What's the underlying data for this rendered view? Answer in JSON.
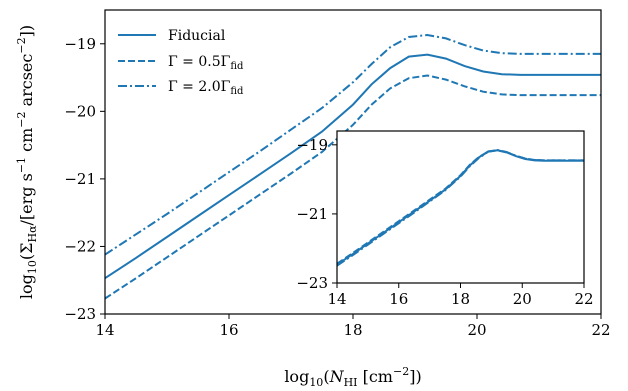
{
  "chart_data": [
    {
      "type": "line",
      "xlabel": "log10(N_HI [cm^-2])",
      "ylabel": "log10(Σ_Hα/[erg s^-1 cm^-2 arcsec^-2])",
      "xlim": [
        14,
        22
      ],
      "ylim": [
        -23,
        -18.5
      ],
      "xticks": [
        "14",
        "16",
        "18",
        "20",
        "22"
      ],
      "yticks": [
        "−23",
        "−22",
        "−21",
        "−20",
        "−19"
      ],
      "xtick_values": [
        14,
        16,
        18,
        20,
        22
      ],
      "ytick_values": [
        -23,
        -22,
        -21,
        -20,
        -19
      ],
      "legend": "top-left",
      "line_color": "#1f77b4",
      "series": [
        {
          "name": "Fiducial",
          "style": "solid",
          "x": [
            14,
            14.5,
            15,
            15.5,
            16,
            16.5,
            17,
            17.5,
            18,
            18.3,
            18.6,
            18.9,
            19.2,
            19.5,
            19.8,
            20.1,
            20.4,
            20.7,
            21,
            21.5,
            22
          ],
          "y": [
            -22.47,
            -22.17,
            -21.86,
            -21.55,
            -21.24,
            -20.93,
            -20.62,
            -20.3,
            -19.9,
            -19.6,
            -19.36,
            -19.19,
            -19.16,
            -19.22,
            -19.33,
            -19.41,
            -19.45,
            -19.46,
            -19.46,
            -19.46,
            -19.46
          ]
        },
        {
          "name": "Γ = 0.5Γfid",
          "style": "dashed",
          "x": [
            14,
            14.5,
            15,
            15.5,
            16,
            16.5,
            17,
            17.5,
            18,
            18.3,
            18.6,
            18.9,
            19.2,
            19.5,
            19.8,
            20.1,
            20.4,
            20.7,
            21,
            21.5,
            22
          ],
          "y": [
            -22.77,
            -22.47,
            -22.16,
            -21.85,
            -21.54,
            -21.23,
            -20.92,
            -20.6,
            -20.2,
            -19.9,
            -19.66,
            -19.51,
            -19.47,
            -19.53,
            -19.63,
            -19.71,
            -19.75,
            -19.76,
            -19.76,
            -19.76,
            -19.76
          ]
        },
        {
          "name": "Γ = 2.0Γfid",
          "style": "dashdot",
          "x": [
            14,
            14.5,
            15,
            15.5,
            16,
            16.5,
            17,
            17.5,
            18,
            18.3,
            18.6,
            18.9,
            19.2,
            19.5,
            19.8,
            20.1,
            20.4,
            20.7,
            21,
            21.5,
            22
          ],
          "y": [
            -22.12,
            -21.82,
            -21.52,
            -21.21,
            -20.9,
            -20.59,
            -20.27,
            -19.95,
            -19.57,
            -19.3,
            -19.05,
            -18.9,
            -18.87,
            -18.92,
            -19.02,
            -19.1,
            -19.14,
            -19.15,
            -19.15,
            -19.15,
            -19.15
          ]
        }
      ]
    },
    {
      "type": "line",
      "inset": true,
      "xlim": [
        14,
        22
      ],
      "ylim": [
        -23,
        -18.6
      ],
      "xticks": [
        "14",
        "16",
        "18",
        "20",
        "22"
      ],
      "yticks": [
        "−23",
        "−21",
        "−19"
      ],
      "xtick_values": [
        14,
        16,
        18,
        20,
        22
      ],
      "ytick_values": [
        -23,
        -21,
        -19
      ],
      "line_color": "#1f77b4",
      "series": [
        {
          "style": "solid",
          "x": [
            14,
            14.5,
            15,
            15.5,
            16,
            16.5,
            17,
            17.5,
            18,
            18.3,
            18.6,
            18.9,
            19.2,
            19.5,
            19.8,
            20.1,
            20.4,
            20.7,
            21,
            21.5,
            22
          ],
          "y": [
            -22.47,
            -22.17,
            -21.86,
            -21.55,
            -21.24,
            -20.93,
            -20.62,
            -20.3,
            -19.9,
            -19.6,
            -19.36,
            -19.19,
            -19.16,
            -19.22,
            -19.33,
            -19.41,
            -19.45,
            -19.46,
            -19.46,
            -19.46,
            -19.46
          ]
        },
        {
          "style": "dashed",
          "x": [
            14,
            14.5,
            15,
            15.5,
            16,
            16.5,
            17,
            17.5,
            18,
            18.3,
            18.6,
            18.9,
            19.2,
            19.5,
            19.8,
            20.1,
            20.4,
            20.7,
            21,
            21.5,
            22
          ],
          "y": [
            -22.44,
            -22.14,
            -21.83,
            -21.52,
            -21.21,
            -20.9,
            -20.59,
            -20.28,
            -19.88,
            -19.58,
            -19.35,
            -19.2,
            -19.16,
            -19.22,
            -19.32,
            -19.4,
            -19.44,
            -19.45,
            -19.45,
            -19.45,
            -19.45
          ]
        },
        {
          "style": "dashdot",
          "x": [
            14,
            14.5,
            15,
            15.5,
            16,
            16.5,
            17,
            17.5,
            18,
            18.3,
            18.6,
            18.9,
            19.2,
            19.5,
            19.8,
            20.1,
            20.4,
            20.7,
            21,
            21.5,
            22
          ],
          "y": [
            -22.5,
            -22.2,
            -21.89,
            -21.58,
            -21.27,
            -20.96,
            -20.64,
            -20.32,
            -19.92,
            -19.62,
            -19.38,
            -19.2,
            -19.15,
            -19.21,
            -19.32,
            -19.4,
            -19.44,
            -19.45,
            -19.45,
            -19.45,
            -19.45
          ]
        }
      ]
    }
  ]
}
